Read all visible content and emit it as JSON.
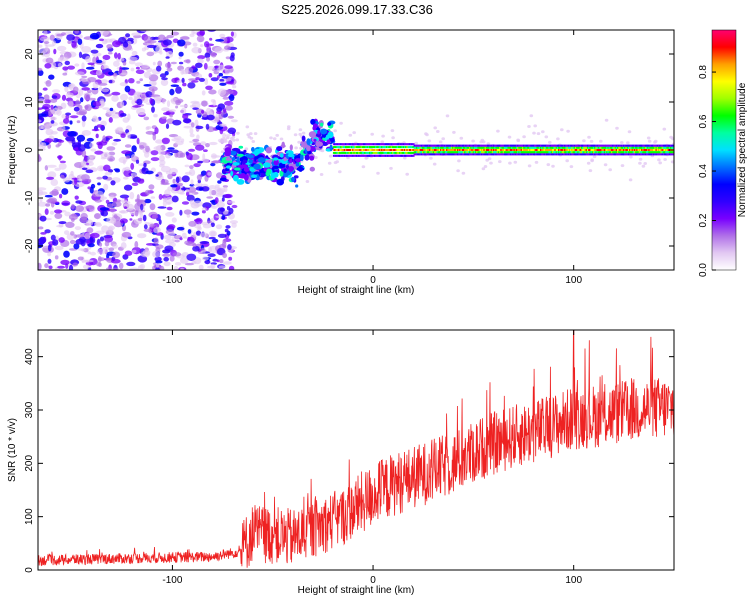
{
  "title": "S225.2026.099.17.33.C36",
  "chart_data": [
    {
      "type": "heatmap",
      "xlabel": "Height of straight line (km)",
      "ylabel": "Frequency (Hz)",
      "xlim": [
        -167,
        150
      ],
      "ylim": [
        -25,
        25
      ],
      "xticks": [
        -100,
        0,
        100
      ],
      "yticks": [
        -20,
        -10,
        0,
        10,
        20
      ],
      "colorbar": {
        "label": "Normalized spectral amplitude",
        "range": [
          0,
          0.97
        ],
        "ticks": [
          "0.0",
          "0.2",
          "0.4",
          "0.6",
          "0.8"
        ],
        "colors": [
          "#ffffff",
          "#e2c8f2",
          "#b070e8",
          "#7800ff",
          "#3000ff",
          "#0000ff",
          "#0070ff",
          "#00e0ff",
          "#00ffa0",
          "#00ff00",
          "#a0ff00",
          "#ffff00",
          "#ffa000",
          "#ff0000",
          "#ff0070"
        ]
      },
      "band": {
        "x_start": -20,
        "x_end": 150,
        "frequency": 0,
        "peak_amplitude": 0.95
      },
      "noise_region": {
        "x_start": -167,
        "x_end": -75,
        "frequency_range": [
          -25,
          25
        ]
      },
      "transition_region": {
        "x_start": -75,
        "x_end": -20,
        "frequency_range": [
          -12,
          10
        ]
      }
    },
    {
      "type": "line",
      "xlabel": "Height of straight line (km)",
      "ylabel": "SNR (10 * v/v)",
      "xlim": [
        -167,
        150
      ],
      "ylim": [
        0,
        450
      ],
      "xticks": [
        -100,
        0,
        100
      ],
      "yticks": [
        0,
        100,
        200,
        300,
        400
      ],
      "color": "#ee2222",
      "trend": [
        {
          "x": -167,
          "y": 18
        },
        {
          "x": -120,
          "y": 22
        },
        {
          "x": -80,
          "y": 25
        },
        {
          "x": -66,
          "y": 35
        },
        {
          "x": -60,
          "y": 70
        },
        {
          "x": -50,
          "y": 65
        },
        {
          "x": -40,
          "y": 60
        },
        {
          "x": -25,
          "y": 85
        },
        {
          "x": -15,
          "y": 100
        },
        {
          "x": 0,
          "y": 140
        },
        {
          "x": 10,
          "y": 160
        },
        {
          "x": 25,
          "y": 180
        },
        {
          "x": 40,
          "y": 200
        },
        {
          "x": 55,
          "y": 230
        },
        {
          "x": 70,
          "y": 250
        },
        {
          "x": 85,
          "y": 265
        },
        {
          "x": 100,
          "y": 285
        },
        {
          "x": 115,
          "y": 290
        },
        {
          "x": 130,
          "y": 300
        },
        {
          "x": 150,
          "y": 305
        }
      ],
      "peak": {
        "x": 100,
        "y": 450
      }
    }
  ]
}
